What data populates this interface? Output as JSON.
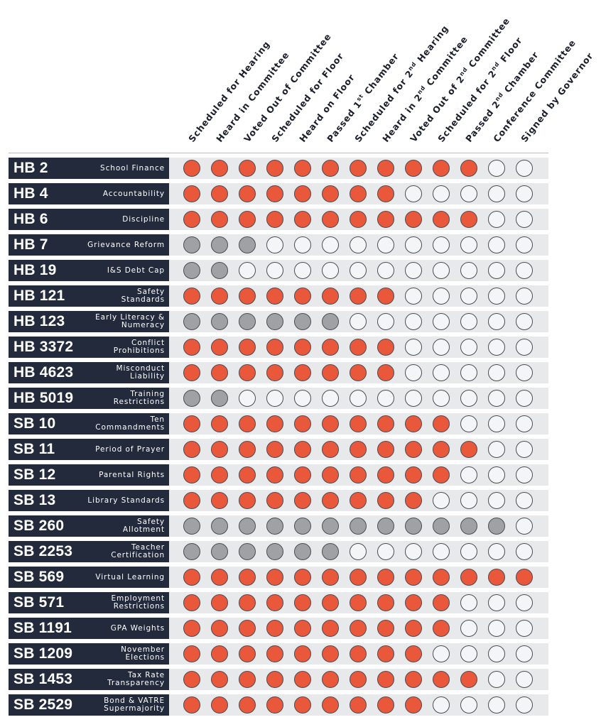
{
  "chart_data": {
    "type": "table",
    "stages": [
      "Scheduled for Hearing",
      "Heard in Committee",
      "Voted Out of Committee",
      "Scheduled for Floor",
      "Heard on Floor",
      "Passed 1st Chamber",
      "Scheduled for 2nd Hearing",
      "Heard in 2nd Committee",
      "Voted Out of 2nd Committee",
      "Scheduled for 2nd Floor",
      "Passed 2nd Chamber",
      "Conference Committee",
      "Signed by Governor"
    ],
    "stages_superscripts": [
      null,
      null,
      null,
      null,
      null,
      [
        "1",
        "st"
      ],
      [
        "2",
        "nd"
      ],
      [
        "2",
        "nd"
      ],
      [
        "2",
        "nd"
      ],
      [
        "2",
        "nd"
      ],
      [
        "2",
        "nd"
      ],
      null,
      null
    ],
    "status_legend": {
      "done": "#e9583a",
      "stalled": "#a0a1a5",
      "pending": "#f4f5f6"
    },
    "bills": [
      {
        "id": "HB 2",
        "name": "School Finance",
        "done": 11,
        "stalled": 0
      },
      {
        "id": "HB 4",
        "name": "Accountability",
        "done": 8,
        "stalled": 0
      },
      {
        "id": "HB 6",
        "name": "Discipline",
        "done": 11,
        "stalled": 0
      },
      {
        "id": "HB 7",
        "name": "Grievance Reform",
        "done": 0,
        "stalled": 3
      },
      {
        "id": "HB 19",
        "name": "I&S Debt Cap",
        "done": 0,
        "stalled": 2
      },
      {
        "id": "HB 121",
        "name": "Safety\nStandards",
        "done": 8,
        "stalled": 0
      },
      {
        "id": "HB 123",
        "name": "Early Literacy &\nNumeracy",
        "done": 0,
        "stalled": 6
      },
      {
        "id": "HB 3372",
        "name": "Conflict\nProhibitions",
        "done": 8,
        "stalled": 0
      },
      {
        "id": "HB 4623",
        "name": "Misconduct\nLiability",
        "done": 8,
        "stalled": 0
      },
      {
        "id": "HB 5019",
        "name": "Training\nRestrictions",
        "done": 0,
        "stalled": 2
      },
      {
        "id": "SB 10",
        "name": "Ten\nCommandments",
        "done": 10,
        "stalled": 0
      },
      {
        "id": "SB 11",
        "name": "Period of Prayer",
        "done": 11,
        "stalled": 0
      },
      {
        "id": "SB 12",
        "name": "Parental Rights",
        "done": 10,
        "stalled": 0
      },
      {
        "id": "SB 13",
        "name": "Library Standards",
        "done": 9,
        "stalled": 0
      },
      {
        "id": "SB 260",
        "name": "Safety\nAllotment",
        "done": 0,
        "stalled": 12
      },
      {
        "id": "SB 2253",
        "name": "Teacher\nCertification",
        "done": 0,
        "stalled": 6
      },
      {
        "id": "SB 569",
        "name": "Virtual Learning",
        "done": 13,
        "stalled": 0
      },
      {
        "id": "SB 571",
        "name": "Employment\nRestrictions",
        "done": 10,
        "stalled": 0
      },
      {
        "id": "SB 1191",
        "name": "GPA Weights",
        "done": 10,
        "stalled": 0
      },
      {
        "id": "SB 1209",
        "name": "November\nElections",
        "done": 9,
        "stalled": 0
      },
      {
        "id": "SB 1453",
        "name": "Tax Rate\nTransparency",
        "done": 11,
        "stalled": 0
      },
      {
        "id": "SB 2529",
        "name": "Bond & VATRE\nSupermajority",
        "done": 9,
        "stalled": 0
      }
    ]
  }
}
